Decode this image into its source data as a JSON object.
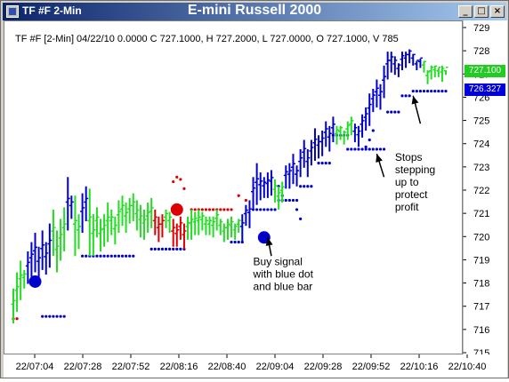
{
  "window": {
    "symbol_label": "TF #F 2-Min",
    "title": "E-mini Russell 2000",
    "buttons": [
      "_",
      "□",
      "×"
    ]
  },
  "info_line": "TF #F [2-Min] 04/22/10  0.0000 C 727.1000, H 727.2000, L 727.0000, O 727.1000, V 785",
  "price_tags": [
    {
      "value": "727.100",
      "color": "#22cc22"
    },
    {
      "value": "726.327",
      "color": "#0000dd"
    }
  ],
  "colors": {
    "green_bar": "#22dd22",
    "blue_bar": "#0000cc",
    "red_bar": "#dd0000",
    "blue_dot": "#0000cc",
    "red_dot": "#dd0000"
  },
  "chart_data": {
    "type": "bar",
    "ylim": [
      715,
      729
    ],
    "yticks": [
      "729",
      "728",
      "727",
      "726",
      "725",
      "724",
      "723",
      "722",
      "721",
      "720",
      "719",
      "718",
      "717",
      "716",
      "715"
    ],
    "xticks": [
      "22/07:04",
      "22/07:28",
      "22/07:52",
      "22/08:16",
      "22/08:40",
      "22/09:04",
      "22/09:28",
      "22/09:52",
      "22/10:16",
      "22/10:40"
    ],
    "series": [
      {
        "bars_ohlc_note": "",
        "bars": [
          [
            716.3,
            717.8,
            "g"
          ],
          [
            716.8,
            718.5,
            "g"
          ],
          [
            717.3,
            719.0,
            "g"
          ],
          [
            717.8,
            718.6,
            "g"
          ],
          [
            718.0,
            719.4,
            "b"
          ],
          [
            718.3,
            719.8,
            "b"
          ],
          [
            718.5,
            720.2,
            "b"
          ],
          [
            718.2,
            719.6,
            "b"
          ],
          [
            718.6,
            720.3,
            "b"
          ],
          [
            718.4,
            719.8,
            "b"
          ],
          [
            718.7,
            720.6,
            "b"
          ],
          [
            719.2,
            721.2,
            "g"
          ],
          [
            718.5,
            720.3,
            "g"
          ],
          [
            719.0,
            720.8,
            "g"
          ],
          [
            719.4,
            721.3,
            "g"
          ],
          [
            720.3,
            722.6,
            "b"
          ],
          [
            720.8,
            721.8,
            "b"
          ],
          [
            719.2,
            721.8,
            "g"
          ],
          [
            719.5,
            721.0,
            "g"
          ],
          [
            720.2,
            721.9,
            "b"
          ],
          [
            720.7,
            722.2,
            "b"
          ],
          [
            719.2,
            722.1,
            "g"
          ],
          [
            719.2,
            721.0,
            "g"
          ],
          [
            720.0,
            721.3,
            "g"
          ],
          [
            719.4,
            720.8,
            "g"
          ],
          [
            719.6,
            721.0,
            "g"
          ],
          [
            719.8,
            721.5,
            "g"
          ],
          [
            720.1,
            721.2,
            "g"
          ],
          [
            719.7,
            720.9,
            "g"
          ],
          [
            720.2,
            721.6,
            "g"
          ],
          [
            720.5,
            721.8,
            "g"
          ],
          [
            720.2,
            721.5,
            "g"
          ],
          [
            720.6,
            721.7,
            "g"
          ],
          [
            720.7,
            721.9,
            "g"
          ],
          [
            720.3,
            721.6,
            "g"
          ],
          [
            720.0,
            721.4,
            "g"
          ],
          [
            719.9,
            721.2,
            "g"
          ],
          [
            720.2,
            721.5,
            "g"
          ],
          [
            720.4,
            721.7,
            "g"
          ],
          [
            720.1,
            721.2,
            "r"
          ],
          [
            719.8,
            720.9,
            "r"
          ],
          [
            720.0,
            721.0,
            "r"
          ],
          [
            720.4,
            721.2,
            "g"
          ],
          [
            720.2,
            721.1,
            "g"
          ],
          [
            719.6,
            720.8,
            "r"
          ],
          [
            719.6,
            720.6,
            "r"
          ],
          [
            719.9,
            720.9,
            "r"
          ],
          [
            719.5,
            720.6,
            "r"
          ],
          [
            719.9,
            720.9,
            "g"
          ],
          [
            719.9,
            721.2,
            "g"
          ],
          [
            720.1,
            721.1,
            "g"
          ],
          [
            720.1,
            721.2,
            "g"
          ],
          [
            720.3,
            721.1,
            "g"
          ],
          [
            720.1,
            720.9,
            "g"
          ],
          [
            720.1,
            720.9,
            "g"
          ],
          [
            720.0,
            720.9,
            "g"
          ],
          [
            720.3,
            721.2,
            "g"
          ],
          [
            720.1,
            720.8,
            "g"
          ],
          [
            719.8,
            720.6,
            "g"
          ],
          [
            719.9,
            720.8,
            "g"
          ],
          [
            720.0,
            720.9,
            "g"
          ],
          [
            719.9,
            720.6,
            "g"
          ],
          [
            720.2,
            720.8,
            "g"
          ],
          [
            719.8,
            721.0,
            "b"
          ],
          [
            720.5,
            721.4,
            "b"
          ],
          [
            720.4,
            721.6,
            "b"
          ],
          [
            721.2,
            722.6,
            "b"
          ],
          [
            721.4,
            723.2,
            "b"
          ],
          [
            721.6,
            722.8,
            "b"
          ],
          [
            721.7,
            722.6,
            "b"
          ],
          [
            721.7,
            722.8,
            "b"
          ],
          [
            721.8,
            722.9,
            "b"
          ],
          [
            721.5,
            722.5,
            "g"
          ],
          [
            721.2,
            722.2,
            "g"
          ],
          [
            721.5,
            722.4,
            "g"
          ],
          [
            722.1,
            723.1,
            "b"
          ],
          [
            722.1,
            723.2,
            "b"
          ],
          [
            722.3,
            723.6,
            "b"
          ],
          [
            722.2,
            723.1,
            "b"
          ],
          [
            722.6,
            723.8,
            "b"
          ],
          [
            723.0,
            724.2,
            "b"
          ],
          [
            722.6,
            723.8,
            "b"
          ],
          [
            723.1,
            724.2,
            "b"
          ],
          [
            723.3,
            724.7,
            "b"
          ],
          [
            723.4,
            724.4,
            "b"
          ],
          [
            723.5,
            724.6,
            "b"
          ],
          [
            723.9,
            725.0,
            "b"
          ],
          [
            723.7,
            724.8,
            "b"
          ],
          [
            724.1,
            725.2,
            "b"
          ],
          [
            724.0,
            724.8,
            "g"
          ],
          [
            724.2,
            724.8,
            "g"
          ],
          [
            724.0,
            724.6,
            "g"
          ],
          [
            724.2,
            725.0,
            "g"
          ],
          [
            724.4,
            725.2,
            "g"
          ],
          [
            724.1,
            724.9,
            "b"
          ],
          [
            723.9,
            724.8,
            "b"
          ],
          [
            724.3,
            725.3,
            "b"
          ],
          [
            724.6,
            725.6,
            "b"
          ],
          [
            724.8,
            726.2,
            "b"
          ],
          [
            725.4,
            726.4,
            "b"
          ],
          [
            725.6,
            726.8,
            "b"
          ],
          [
            725.5,
            726.6,
            "b"
          ],
          [
            726.0,
            727.4,
            "b"
          ],
          [
            726.8,
            728.0,
            "b"
          ],
          [
            727.1,
            728.0,
            "b"
          ],
          [
            727.0,
            727.8,
            "b"
          ],
          [
            726.9,
            727.5,
            "b"
          ],
          [
            727.2,
            728.0,
            "b"
          ],
          [
            727.3,
            728.0,
            "b"
          ],
          [
            727.5,
            728.1,
            "b"
          ],
          [
            727.4,
            727.9,
            "b"
          ],
          [
            727.2,
            727.6,
            "b"
          ],
          [
            727.3,
            727.7,
            "b"
          ],
          [
            727.1,
            727.6,
            "g"
          ],
          [
            726.6,
            727.2,
            "g"
          ],
          [
            726.8,
            727.4,
            "g"
          ],
          [
            726.9,
            727.4,
            "g"
          ],
          [
            726.9,
            727.3,
            "g"
          ],
          [
            726.7,
            727.4,
            "g"
          ],
          [
            727.0,
            727.2,
            "g"
          ]
        ]
      }
    ],
    "stop_dots": [
      {
        "x_start": 0,
        "x_end": 1,
        "y": 716.5,
        "color": "r"
      },
      {
        "x_start": 8,
        "x_end": 14,
        "y": 716.6,
        "color": "b"
      },
      {
        "x_start": 19,
        "x_end": 33,
        "y": 719.2,
        "color": "b"
      },
      {
        "x_start": 38,
        "x_end": 47,
        "y": 719.5,
        "color": "b"
      },
      {
        "x_start": 49,
        "x_end": 60,
        "y": 721.2,
        "color": "r"
      },
      {
        "x_start": 60,
        "x_end": 63,
        "y": 719.8,
        "color": "b"
      },
      {
        "x_start": 66,
        "x_end": 72,
        "y": 721.2,
        "color": "b"
      },
      {
        "x_start": 73,
        "x_end": 78,
        "y": 721.6,
        "color": "b"
      },
      {
        "x_start": 79,
        "x_end": 82,
        "y": 722.2,
        "color": "b"
      },
      {
        "x_start": 84,
        "x_end": 87,
        "y": 723.2,
        "color": "b"
      },
      {
        "x_start": 88,
        "x_end": 92,
        "y": 724.4,
        "color": "b"
      },
      {
        "x_start": 92,
        "x_end": 102,
        "y": 723.8,
        "color": "b"
      },
      {
        "x_start": 103,
        "x_end": 106,
        "y": 725.4,
        "color": "b"
      },
      {
        "x_start": 107,
        "x_end": 109,
        "y": 726.1,
        "color": "b"
      },
      {
        "x_start": 110,
        "x_end": 119,
        "y": 726.3,
        "color": "b"
      }
    ],
    "scattered_dots": [
      {
        "x": 45,
        "y": 722.6,
        "color": "r"
      },
      {
        "x": 46,
        "y": 722.5,
        "color": "r"
      },
      {
        "x": 47,
        "y": 722.1,
        "color": "r"
      },
      {
        "x": 44,
        "y": 722.4,
        "color": "r"
      },
      {
        "x": 62,
        "y": 721.8,
        "color": "r"
      },
      {
        "x": 64,
        "y": 721.6,
        "color": "r"
      },
      {
        "x": 73,
        "y": 722.2,
        "color": "b"
      },
      {
        "x": 74,
        "y": 721.8,
        "color": "b"
      },
      {
        "x": 78,
        "y": 721.2,
        "color": "b"
      },
      {
        "x": 79,
        "y": 720.8,
        "color": "b"
      },
      {
        "x": 97,
        "y": 723.9,
        "color": "b"
      },
      {
        "x": 98,
        "y": 724.2,
        "color": "b"
      },
      {
        "x": 99,
        "y": 724.6,
        "color": "b"
      }
    ],
    "signal_dots": [
      {
        "x": 6,
        "y": 718.1,
        "color": "b"
      },
      {
        "x": 45,
        "y": 721.2,
        "color": "r"
      },
      {
        "x": 69,
        "y": 720.0,
        "color": "b"
      }
    ],
    "annotations": [
      {
        "lines": [
          "Buy signal",
          "with blue dot",
          "and blue bar"
        ],
        "arrow_from": [
          71,
          719.2
        ],
        "arrow_to": [
          70,
          720.0
        ],
        "text_x": 66,
        "text_y": 718.8
      },
      {
        "lines": [
          "Stops",
          "stepping",
          "up to",
          "protect",
          "profit"
        ],
        "arrow_from": [
          102,
          722.6
        ],
        "arrow_to": [
          100,
          723.6
        ],
        "text_x": 105,
        "text_y": 723.3
      },
      {
        "lines": [],
        "arrow_from": [
          112,
          724.9
        ],
        "arrow_to": [
          110,
          726.1
        ]
      }
    ]
  }
}
